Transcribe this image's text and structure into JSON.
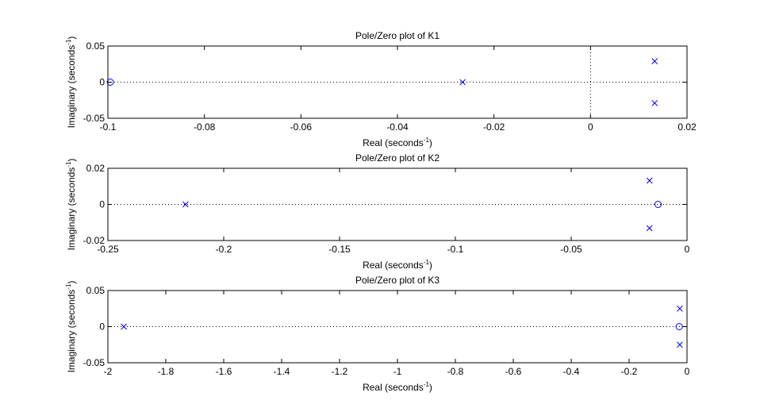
{
  "chart_data": [
    {
      "type": "scatter",
      "title": "Pole/Zero plot of K1",
      "xlabel": "Real (seconds",
      "ylabel": "Imaginary (seconds",
      "label_exponent": "-1",
      "label_close": ")",
      "xlim": [
        -0.1,
        0.02
      ],
      "ylim": [
        -0.05,
        0.05
      ],
      "xticks": [
        -0.1,
        -0.08,
        -0.06,
        -0.04,
        -0.02,
        0,
        0.02
      ],
      "xtick_labels": [
        "-0.1",
        "-0.08",
        "-0.06",
        "-0.04",
        "-0.02",
        "0",
        "0.02"
      ],
      "yticks": [
        -0.05,
        0,
        0.05
      ],
      "ytick_labels": [
        "-0.05",
        "0",
        "0.05"
      ],
      "real_axis_line": true,
      "imag_axis_line": true,
      "poles": [
        [
          -0.0265,
          0
        ],
        [
          0.0133,
          0.029
        ],
        [
          0.0133,
          -0.029
        ]
      ],
      "zeros": [
        [
          -0.0995,
          0
        ]
      ],
      "marker_color": "#0000ff"
    },
    {
      "type": "scatter",
      "title": "Pole/Zero plot of K2",
      "xlabel": "Real (seconds",
      "ylabel": "Imaginary (seconds",
      "label_exponent": "-1",
      "label_close": ")",
      "xlim": [
        -0.25,
        0
      ],
      "ylim": [
        -0.02,
        0.02
      ],
      "xticks": [
        -0.25,
        -0.2,
        -0.15,
        -0.1,
        -0.05,
        0
      ],
      "xtick_labels": [
        "-0.25",
        "-0.2",
        "-0.15",
        "-0.1",
        "-0.05",
        "0"
      ],
      "yticks": [
        -0.02,
        0,
        0.02
      ],
      "ytick_labels": [
        "-0.02",
        "0",
        "0.02"
      ],
      "real_axis_line": true,
      "imag_axis_line": false,
      "poles": [
        [
          -0.2165,
          0
        ],
        [
          -0.0162,
          0.0132
        ],
        [
          -0.0162,
          -0.0132
        ]
      ],
      "zeros": [
        [
          -0.0125,
          0
        ]
      ],
      "marker_color": "#0000ff"
    },
    {
      "type": "scatter",
      "title": "Pole/Zero plot of K3",
      "xlabel": "Real (seconds",
      "ylabel": "Imaginary (seconds",
      "label_exponent": "-1",
      "label_close": ")",
      "xlim": [
        -2,
        0
      ],
      "ylim": [
        -0.05,
        0.05
      ],
      "xticks": [
        -2,
        -1.8,
        -1.6,
        -1.4,
        -1.2,
        -1,
        -0.8,
        -0.6,
        -0.4,
        -0.2,
        0
      ],
      "xtick_labels": [
        "-2",
        "-1.8",
        "-1.6",
        "-1.4",
        "-1.2",
        "-1",
        "-0.8",
        "-0.6",
        "-0.4",
        "-0.2",
        "0"
      ],
      "yticks": [
        -0.05,
        0,
        0.05
      ],
      "ytick_labels": [
        "-0.05",
        "0",
        "0.05"
      ],
      "real_axis_line": true,
      "imag_axis_line": false,
      "poles": [
        [
          -1.945,
          0
        ],
        [
          -0.025,
          0.025
        ],
        [
          -0.025,
          -0.025
        ]
      ],
      "zeros": [
        [
          -0.027,
          0
        ]
      ],
      "marker_color": "#0000ff"
    }
  ]
}
